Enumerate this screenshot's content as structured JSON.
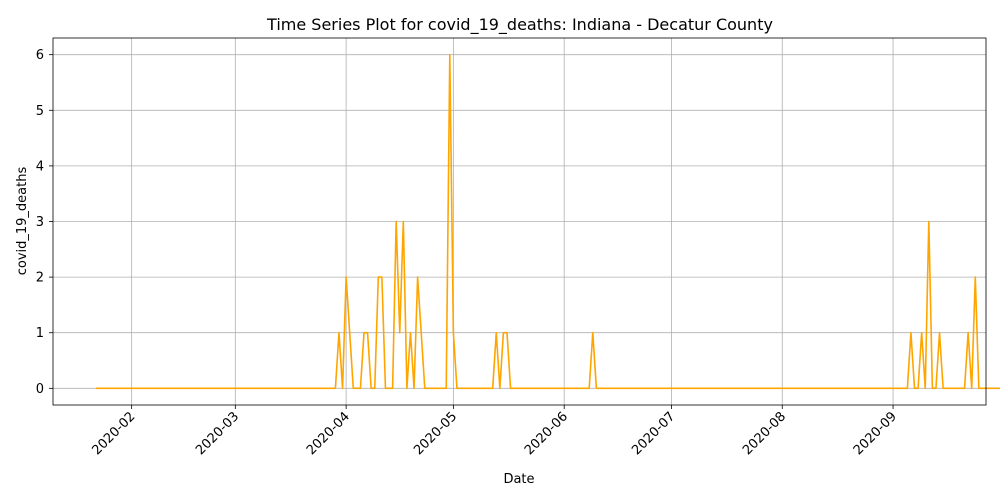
{
  "chart_data": {
    "type": "line",
    "title": "Time Series Plot for covid_19_deaths: Indiana - Decatur County",
    "xlabel": "Date",
    "ylabel": "covid_19_deaths",
    "x_start": "2020-01-22",
    "x_end": "2020-09-16",
    "xlim": [
      "2020-01-10",
      "2020-09-27"
    ],
    "ylim": [
      -0.3,
      6.3
    ],
    "x_ticks": [
      "2020-02",
      "2020-03",
      "2020-04",
      "2020-05",
      "2020-06",
      "2020-07",
      "2020-08",
      "2020-09"
    ],
    "y_ticks": [
      0,
      1,
      2,
      3,
      4,
      5,
      6
    ],
    "grid": true,
    "legend": "none",
    "line_color": "#FFA500",
    "series": [
      {
        "values": [
          0,
          0,
          0,
          0,
          0,
          0,
          0,
          0,
          0,
          0,
          0,
          0,
          0,
          0,
          0,
          0,
          0,
          0,
          0,
          0,
          0,
          0,
          0,
          0,
          0,
          0,
          0,
          0,
          0,
          0,
          0,
          0,
          0,
          0,
          0,
          0,
          0,
          0,
          0,
          0,
          0,
          0,
          0,
          0,
          0,
          0,
          0,
          0,
          0,
          0,
          0,
          0,
          0,
          0,
          0,
          0,
          0,
          0,
          0,
          0,
          0,
          0,
          0,
          0,
          0,
          0,
          0,
          0,
          1,
          0,
          2,
          1,
          0,
          0,
          0,
          1,
          1,
          0,
          0,
          2,
          2,
          0,
          0,
          0,
          3,
          1,
          3,
          0,
          1,
          0,
          2,
          1,
          0,
          0,
          0,
          0,
          0,
          0,
          0,
          6,
          1,
          0,
          0,
          0,
          0,
          0,
          0,
          0,
          0,
          0,
          0,
          0,
          1,
          0,
          1,
          1,
          0,
          0,
          0,
          0,
          0,
          0,
          0,
          0,
          0,
          0,
          0,
          0,
          0,
          0,
          0,
          0,
          0,
          0,
          0,
          0,
          0,
          0,
          0,
          1,
          0,
          0,
          0,
          0,
          0,
          0,
          0,
          0,
          0,
          0,
          0,
          0,
          0,
          0,
          0,
          0,
          0,
          0,
          0,
          0,
          0,
          0,
          0,
          0,
          0,
          0,
          0,
          0,
          0,
          0,
          0,
          0,
          0,
          0,
          0,
          0,
          0,
          0,
          0,
          0,
          0,
          0,
          0,
          0,
          0,
          0,
          0,
          0,
          0,
          0,
          0,
          0,
          0,
          0,
          0,
          0,
          0,
          0,
          0,
          0,
          0,
          0,
          0,
          0,
          0,
          0,
          0,
          0,
          0,
          0,
          0,
          0,
          0,
          0,
          0,
          0,
          0,
          0,
          0,
          0,
          0,
          0,
          0,
          0,
          0,
          0,
          0,
          0,
          1,
          0,
          0,
          1,
          0,
          3,
          0,
          0,
          1,
          0,
          0,
          0,
          0,
          0,
          0,
          0,
          1,
          0,
          2,
          0,
          0,
          0,
          0,
          0,
          0,
          0,
          0,
          0,
          1
        ]
      }
    ]
  }
}
